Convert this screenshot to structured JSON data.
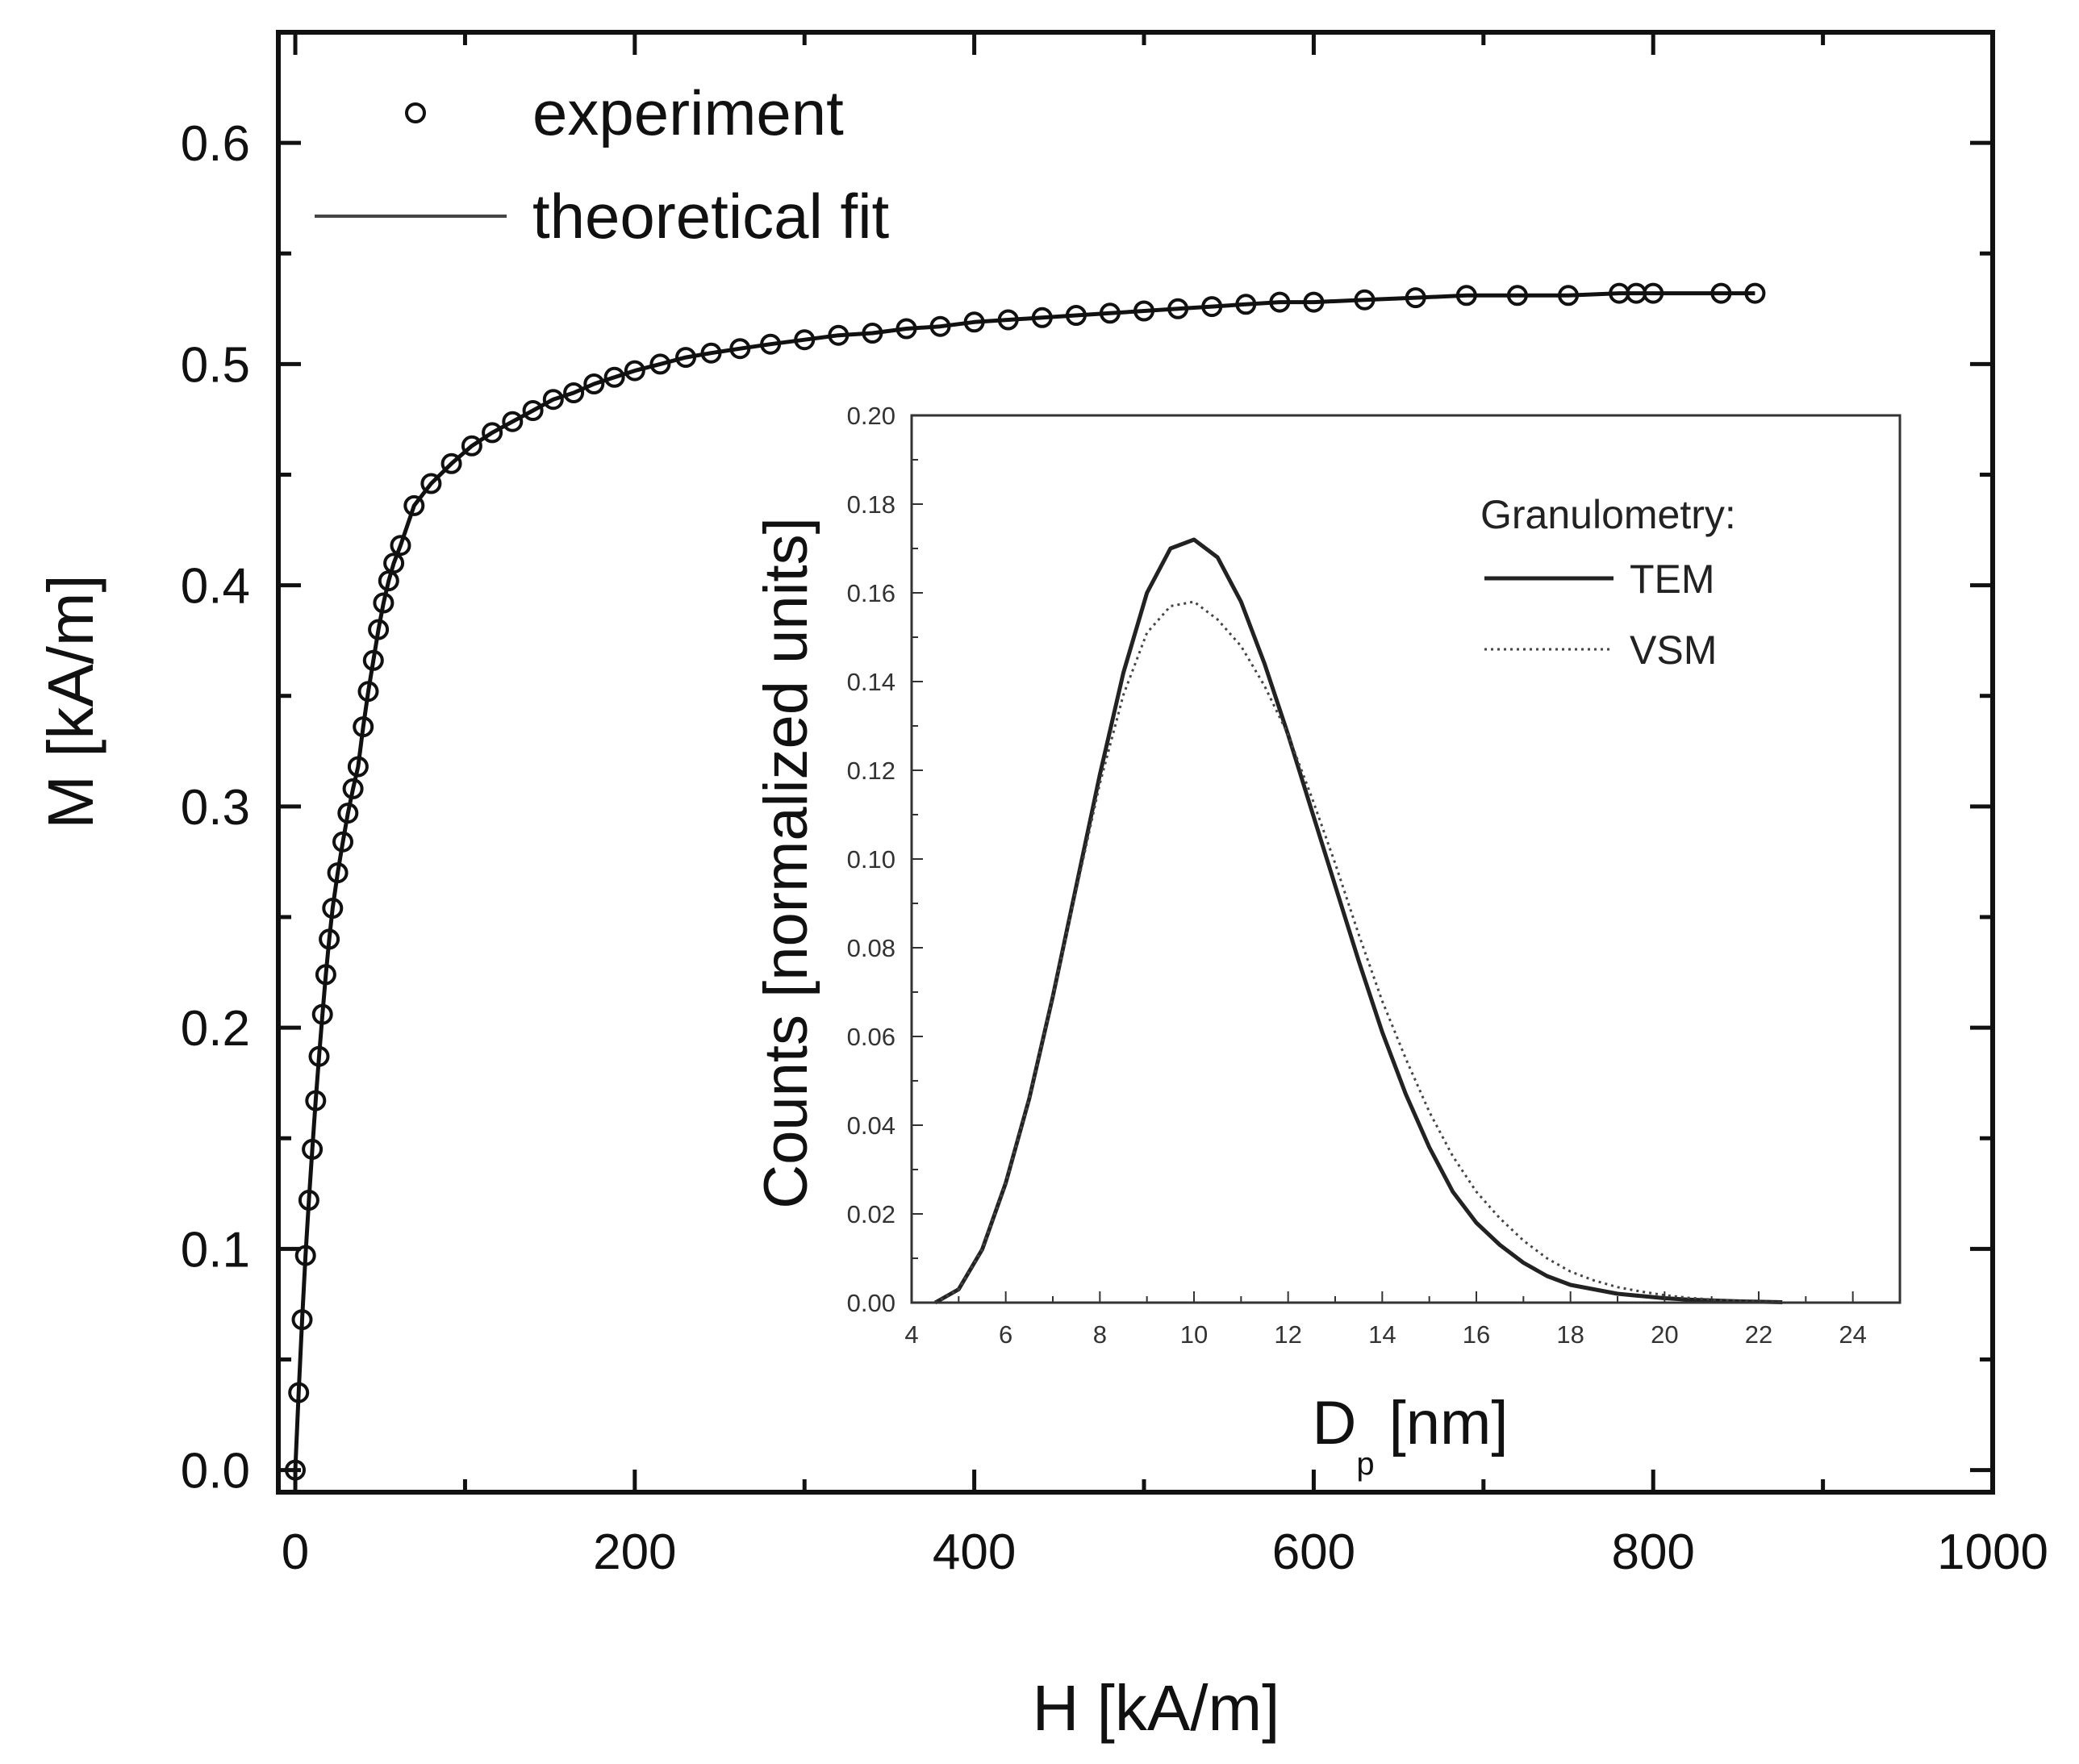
{
  "chart_data": [
    {
      "id": "main",
      "type": "scatter",
      "title": "",
      "xlabel": "H [kA/m]",
      "ylabel": "M [kA/m]",
      "xlim": [
        -10,
        1000
      ],
      "ylim": [
        -0.01,
        0.65
      ],
      "xticks": [
        0,
        200,
        400,
        600,
        800,
        1000
      ],
      "xtick_labels": [
        "0",
        "200",
        "400",
        "600",
        "800",
        "1000"
      ],
      "yticks": [
        0.0,
        0.1,
        0.2,
        0.3,
        0.4,
        0.5,
        0.6
      ],
      "ytick_labels": [
        "0.0",
        "0.1",
        "0.2",
        "0.3",
        "0.4",
        "0.5",
        "0.6"
      ],
      "grid": false,
      "legend_position": "top-left",
      "series": [
        {
          "name": "experiment",
          "style": "open-circle",
          "x": [
            0,
            2,
            4,
            6,
            8,
            10,
            12,
            14,
            16,
            18,
            20,
            22,
            25,
            28,
            31,
            34,
            37,
            40,
            43,
            46,
            49,
            52,
            55,
            58,
            62,
            70,
            80,
            92,
            104,
            116,
            128,
            140,
            152,
            164,
            176,
            188,
            200,
            215,
            230,
            245,
            262,
            280,
            300,
            320,
            340,
            360,
            380,
            400,
            420,
            440,
            460,
            480,
            500,
            520,
            540,
            560,
            580,
            600,
            630,
            660,
            690,
            720,
            750,
            780,
            790,
            800,
            840,
            860
          ],
          "y": [
            0.0,
            0.035,
            0.068,
            0.097,
            0.122,
            0.145,
            0.167,
            0.187,
            0.206,
            0.224,
            0.24,
            0.254,
            0.27,
            0.284,
            0.297,
            0.308,
            0.318,
            0.336,
            0.352,
            0.366,
            0.38,
            0.392,
            0.402,
            0.41,
            0.418,
            0.436,
            0.446,
            0.455,
            0.463,
            0.469,
            0.474,
            0.479,
            0.484,
            0.487,
            0.491,
            0.494,
            0.497,
            0.5,
            0.503,
            0.505,
            0.507,
            0.509,
            0.511,
            0.513,
            0.514,
            0.516,
            0.517,
            0.519,
            0.52,
            0.521,
            0.522,
            0.523,
            0.524,
            0.525,
            0.526,
            0.527,
            0.528,
            0.528,
            0.529,
            0.53,
            0.531,
            0.531,
            0.531,
            0.532,
            0.532,
            0.532,
            0.532,
            0.532
          ]
        },
        {
          "name": "theoretical fit",
          "style": "line",
          "x": [
            0,
            2,
            4,
            6,
            8,
            10,
            12,
            14,
            16,
            18,
            20,
            22,
            25,
            28,
            31,
            34,
            37,
            40,
            43,
            46,
            49,
            52,
            55,
            58,
            62,
            70,
            80,
            92,
            104,
            116,
            128,
            140,
            152,
            164,
            176,
            188,
            200,
            215,
            230,
            245,
            262,
            280,
            300,
            320,
            340,
            360,
            380,
            400,
            420,
            440,
            460,
            480,
            500,
            520,
            540,
            560,
            580,
            600,
            630,
            660,
            690,
            720,
            750,
            780,
            790,
            800,
            840,
            860
          ],
          "y": [
            0.0,
            0.035,
            0.068,
            0.097,
            0.122,
            0.145,
            0.167,
            0.187,
            0.206,
            0.224,
            0.24,
            0.254,
            0.27,
            0.284,
            0.297,
            0.308,
            0.318,
            0.336,
            0.352,
            0.366,
            0.38,
            0.392,
            0.402,
            0.41,
            0.418,
            0.436,
            0.446,
            0.455,
            0.463,
            0.469,
            0.474,
            0.479,
            0.484,
            0.487,
            0.491,
            0.494,
            0.497,
            0.5,
            0.503,
            0.505,
            0.507,
            0.509,
            0.511,
            0.513,
            0.514,
            0.516,
            0.517,
            0.519,
            0.52,
            0.521,
            0.522,
            0.523,
            0.524,
            0.525,
            0.526,
            0.527,
            0.528,
            0.528,
            0.529,
            0.53,
            0.531,
            0.531,
            0.531,
            0.532,
            0.532,
            0.532,
            0.532,
            0.532
          ]
        }
      ]
    },
    {
      "id": "inset",
      "type": "line",
      "title": "",
      "xlabel_main": "D",
      "xlabel_sub": "p",
      "xlabel_unit": "[nm]",
      "ylabel": "Counts [normalized units]",
      "xlim": [
        4,
        25
      ],
      "ylim": [
        0,
        0.2
      ],
      "xticks": [
        4,
        6,
        8,
        10,
        12,
        14,
        16,
        18,
        20,
        22,
        24
      ],
      "xtick_labels": [
        "4",
        "6",
        "8",
        "10",
        "12",
        "14",
        "16",
        "18",
        "20",
        "22",
        "24"
      ],
      "yticks": [
        0.0,
        0.02,
        0.04,
        0.06,
        0.08,
        0.1,
        0.12,
        0.14,
        0.16,
        0.18,
        0.2
      ],
      "ytick_labels": [
        "0.00",
        "0.02",
        "0.04",
        "0.06",
        "0.08",
        "0.10",
        "0.12",
        "0.14",
        "0.16",
        "0.18",
        "0.20"
      ],
      "grid": false,
      "legend_title": "Granulometry:",
      "legend_position": "top-right",
      "series": [
        {
          "name": "TEM",
          "style": "solid",
          "x": [
            4.5,
            5,
            5.5,
            6,
            6.5,
            7,
            7.5,
            8,
            8.5,
            9,
            9.5,
            10,
            10.5,
            11,
            11.5,
            12,
            12.5,
            13,
            13.5,
            14,
            14.5,
            15,
            15.5,
            16,
            16.5,
            17,
            17.5,
            18,
            18.5,
            19,
            19.5,
            20,
            20.5,
            21,
            21.5,
            22,
            22.5
          ],
          "values": [
            0.0,
            0.003,
            0.012,
            0.027,
            0.046,
            0.069,
            0.094,
            0.119,
            0.142,
            0.16,
            0.17,
            0.172,
            0.168,
            0.158,
            0.144,
            0.128,
            0.111,
            0.094,
            0.077,
            0.061,
            0.047,
            0.035,
            0.025,
            0.018,
            0.013,
            0.009,
            0.006,
            0.004,
            0.003,
            0.002,
            0.0015,
            0.001,
            0.0007,
            0.0005,
            0.0003,
            0.0002,
            0.0001
          ]
        },
        {
          "name": "VSM",
          "style": "dotted",
          "x": [
            4.5,
            5,
            5.5,
            6,
            6.5,
            7,
            7.5,
            8,
            8.5,
            9,
            9.5,
            10,
            10.5,
            11,
            11.5,
            12,
            12.5,
            13,
            13.5,
            14,
            14.5,
            15,
            15.5,
            16,
            16.5,
            17,
            17.5,
            18,
            18.5,
            19,
            19.5,
            20,
            20.5,
            21,
            21.5,
            22,
            22.5
          ],
          "values": [
            0.0,
            0.003,
            0.012,
            0.027,
            0.046,
            0.069,
            0.093,
            0.117,
            0.137,
            0.151,
            0.157,
            0.158,
            0.154,
            0.148,
            0.139,
            0.128,
            0.114,
            0.099,
            0.083,
            0.068,
            0.055,
            0.043,
            0.033,
            0.025,
            0.019,
            0.014,
            0.01,
            0.007,
            0.005,
            0.0035,
            0.0025,
            0.0017,
            0.0011,
            0.0007,
            0.0004,
            0.0002,
            0.0001
          ]
        }
      ]
    }
  ]
}
